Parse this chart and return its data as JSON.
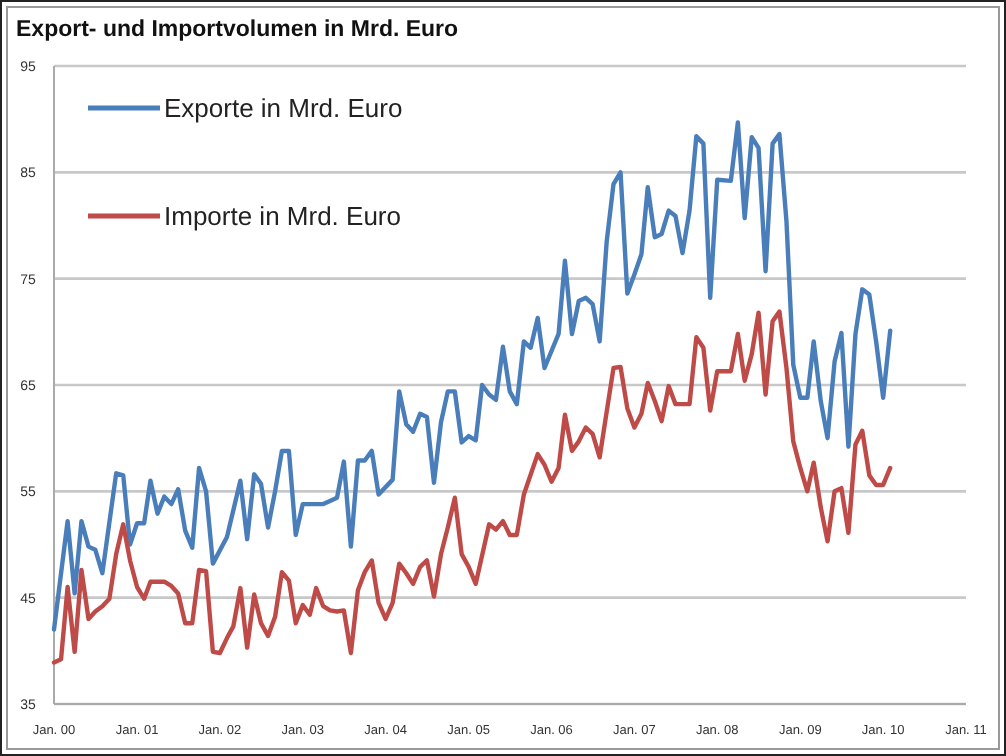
{
  "chart_data": {
    "type": "line",
    "title": "Export- und Importvolumen in Mrd. Euro",
    "xlim": [
      "2000-01",
      "2011-01"
    ],
    "xticks": [
      {
        "value": "2000-01",
        "label": "Jan. 00"
      },
      {
        "value": "2001-01",
        "label": "Jan. 01"
      },
      {
        "value": "2002-01",
        "label": "Jan. 02"
      },
      {
        "value": "2003-01",
        "label": "Jan. 03"
      },
      {
        "value": "2004-01",
        "label": "Jan. 04"
      },
      {
        "value": "2005-01",
        "label": "Jan. 05"
      },
      {
        "value": "2006-01",
        "label": "Jan. 06"
      },
      {
        "value": "2007-01",
        "label": "Jan. 07"
      },
      {
        "value": "2008-01",
        "label": "Jan. 08"
      },
      {
        "value": "2009-01",
        "label": "Jan. 09"
      },
      {
        "value": "2010-01",
        "label": "Jan. 10"
      },
      {
        "value": "2011-01",
        "label": "Jan. 11"
      }
    ],
    "ylim": [
      35,
      95
    ],
    "yticks": [
      35,
      45,
      55,
      65,
      75,
      85,
      95
    ],
    "grid": "y",
    "legend": "top left",
    "marker": "none",
    "line_style": "solid",
    "series": [
      {
        "name": "Exporte in Mrd. Euro",
        "color": "#4a7ebb",
        "x": [
          "2000-01",
          "2000-03",
          "2000-04",
          "2000-05",
          "2000-06",
          "2000-07",
          "2000-08",
          "2000-10",
          "2000-11",
          "2000-12",
          "2001-01",
          "2001-02",
          "2001-03",
          "2001-04",
          "2001-05",
          "2001-06",
          "2001-07",
          "2001-08",
          "2001-09",
          "2001-10",
          "2001-11",
          "2001-12",
          "2002-02",
          "2002-04",
          "2002-05",
          "2002-06",
          "2002-07",
          "2002-08",
          "2002-09",
          "2002-10",
          "2002-11",
          "2002-12",
          "2003-01",
          "2003-04",
          "2003-05",
          "2003-06",
          "2003-07",
          "2003-08",
          "2003-09",
          "2003-10",
          "2003-11",
          "2003-12",
          "2004-02",
          "2004-03",
          "2004-04",
          "2004-05",
          "2004-06",
          "2004-07",
          "2004-08",
          "2004-09",
          "2004-10",
          "2004-11",
          "2004-12",
          "2005-01",
          "2005-02",
          "2005-03",
          "2005-04",
          "2005-05",
          "2005-06",
          "2005-07",
          "2005-08",
          "2005-09",
          "2005-10",
          "2005-11",
          "2005-12",
          "2006-02",
          "2006-03",
          "2006-04",
          "2006-05",
          "2006-06",
          "2006-07",
          "2006-08",
          "2006-09",
          "2006-10",
          "2006-11",
          "2006-12",
          "2007-01",
          "2007-02",
          "2007-03",
          "2007-04",
          "2007-05",
          "2007-06",
          "2007-07",
          "2007-08",
          "2007-09",
          "2007-10",
          "2007-11",
          "2007-12",
          "2008-01",
          "2008-03",
          "2008-04",
          "2008-05",
          "2008-06",
          "2008-07",
          "2008-08",
          "2008-09",
          "2008-10",
          "2008-11",
          "2008-12",
          "2009-01",
          "2009-02",
          "2009-03",
          "2009-04",
          "2009-05",
          "2009-06",
          "2009-07",
          "2009-08",
          "2009-09",
          "2009-10",
          "2009-11",
          "2009-12",
          "2010-01",
          "2010-02"
        ],
        "values": [
          42,
          52.2,
          45.4,
          52.2,
          49.8,
          49.5,
          47.3,
          56.7,
          56.5,
          50,
          52,
          52,
          56,
          52.9,
          54.5,
          53.8,
          55.2,
          51.3,
          49.7,
          57.2,
          55,
          48.2,
          50.7,
          56,
          50.5,
          56.6,
          55.7,
          51.6,
          55,
          58.8,
          58.8,
          50.9,
          53.8,
          53.8,
          54.1,
          54.4,
          57.8,
          49.8,
          57.9,
          57.9,
          58.8,
          54.7,
          56.1,
          64.4,
          61.3,
          60.6,
          62.3,
          62,
          55.8,
          61.5,
          64.4,
          64.4,
          59.6,
          60.2,
          59.8,
          65,
          64.1,
          63.6,
          68.6,
          64.4,
          63.2,
          69.1,
          68.5,
          71.3,
          66.6,
          69.8,
          76.7,
          69.8,
          72.9,
          73.2,
          72.6,
          69.1,
          78.5,
          83.9,
          85,
          73.6,
          75.4,
          77.3,
          83.6,
          78.9,
          79.2,
          81.4,
          80.9,
          77.4,
          81.4,
          88.4,
          87.7,
          73.2,
          84.3,
          84.2,
          89.7,
          80.7,
          88.3,
          87.3,
          75.7,
          87.7,
          88.6,
          80.4,
          66.9,
          63.8,
          63.8,
          69.1,
          63.5,
          60,
          67.2,
          69.9,
          59.2,
          69.8,
          74,
          73.5,
          69.1,
          63.8,
          70.1
        ]
      },
      {
        "name": "Importe in Mrd. Euro",
        "color": "#be4b48",
        "x": [
          "2000-01",
          "2000-02",
          "2000-03",
          "2000-04",
          "2000-05",
          "2000-06",
          "2000-07",
          "2000-08",
          "2000-09",
          "2000-10",
          "2000-11",
          "2000-12",
          "2001-01",
          "2001-02",
          "2001-03",
          "2001-04",
          "2001-05",
          "2001-06",
          "2001-07",
          "2001-08",
          "2001-09",
          "2001-10",
          "2001-11",
          "2001-12",
          "2002-01",
          "2002-02",
          "2002-03",
          "2002-04",
          "2002-05",
          "2002-06",
          "2002-07",
          "2002-08",
          "2002-09",
          "2002-10",
          "2002-11",
          "2002-12",
          "2003-01",
          "2003-02",
          "2003-03",
          "2003-04",
          "2003-05",
          "2003-06",
          "2003-07",
          "2003-08",
          "2003-09",
          "2003-10",
          "2003-11",
          "2003-12",
          "2004-01",
          "2004-02",
          "2004-03",
          "2004-04",
          "2004-05",
          "2004-06",
          "2004-07",
          "2004-08",
          "2004-09",
          "2004-10",
          "2004-11",
          "2004-12",
          "2005-01",
          "2005-02",
          "2005-04",
          "2005-05",
          "2005-06",
          "2005-07",
          "2005-08",
          "2005-09",
          "2005-11",
          "2005-12",
          "2006-01",
          "2006-02",
          "2006-03",
          "2006-04",
          "2006-05",
          "2006-06",
          "2006-07",
          "2006-08",
          "2006-09",
          "2006-10",
          "2006-11",
          "2006-12",
          "2007-01",
          "2007-02",
          "2007-03",
          "2007-04",
          "2007-05",
          "2007-06",
          "2007-07",
          "2007-08",
          "2007-09",
          "2007-10",
          "2007-11",
          "2007-12",
          "2008-01",
          "2008-03",
          "2008-04",
          "2008-05",
          "2008-06",
          "2008-07",
          "2008-08",
          "2008-09",
          "2008-10",
          "2008-11",
          "2008-12",
          "2009-01",
          "2009-02",
          "2009-03",
          "2009-04",
          "2009-05",
          "2009-06",
          "2009-07",
          "2009-08",
          "2009-09",
          "2009-10",
          "2009-11",
          "2009-12",
          "2010-01",
          "2010-02"
        ],
        "values": [
          38.9,
          39.2,
          46,
          39.9,
          47.6,
          43,
          43.7,
          44.2,
          44.9,
          49.1,
          51.9,
          48.5,
          46,
          44.9,
          46.5,
          46.5,
          46.5,
          46.1,
          45.4,
          42.6,
          42.6,
          47.6,
          47.5,
          39.9,
          39.8,
          41.2,
          42.3,
          45.9,
          40.3,
          45.3,
          42.6,
          41.4,
          43.2,
          47.4,
          46.6,
          42.6,
          44.3,
          43.4,
          45.9,
          44.2,
          43.8,
          43.7,
          43.8,
          39.8,
          45.7,
          47.4,
          48.5,
          44.5,
          43,
          44.5,
          48.2,
          47.3,
          46.3,
          47.9,
          48.5,
          45.1,
          49.1,
          51.6,
          54.4,
          49.1,
          47.9,
          46.3,
          51.9,
          51.4,
          52.2,
          50.9,
          50.9,
          54.7,
          58.5,
          57.5,
          55.9,
          57.2,
          62.2,
          58.8,
          59.7,
          61,
          60.4,
          58.2,
          62.5,
          66.6,
          66.7,
          62.8,
          61,
          62.3,
          65.2,
          63.5,
          61.6,
          64.9,
          63.2,
          63.2,
          63.2,
          69.5,
          68.5,
          62.6,
          66.3,
          66.3,
          69.8,
          65.4,
          67.9,
          71.8,
          64.1,
          71,
          71.9,
          66.6,
          59.7,
          57.2,
          55,
          57.7,
          53.5,
          50.3,
          55,
          55.3,
          51.1,
          59.4,
          60.7,
          56.5,
          55.6,
          55.6,
          57.2
        ]
      }
    ]
  }
}
